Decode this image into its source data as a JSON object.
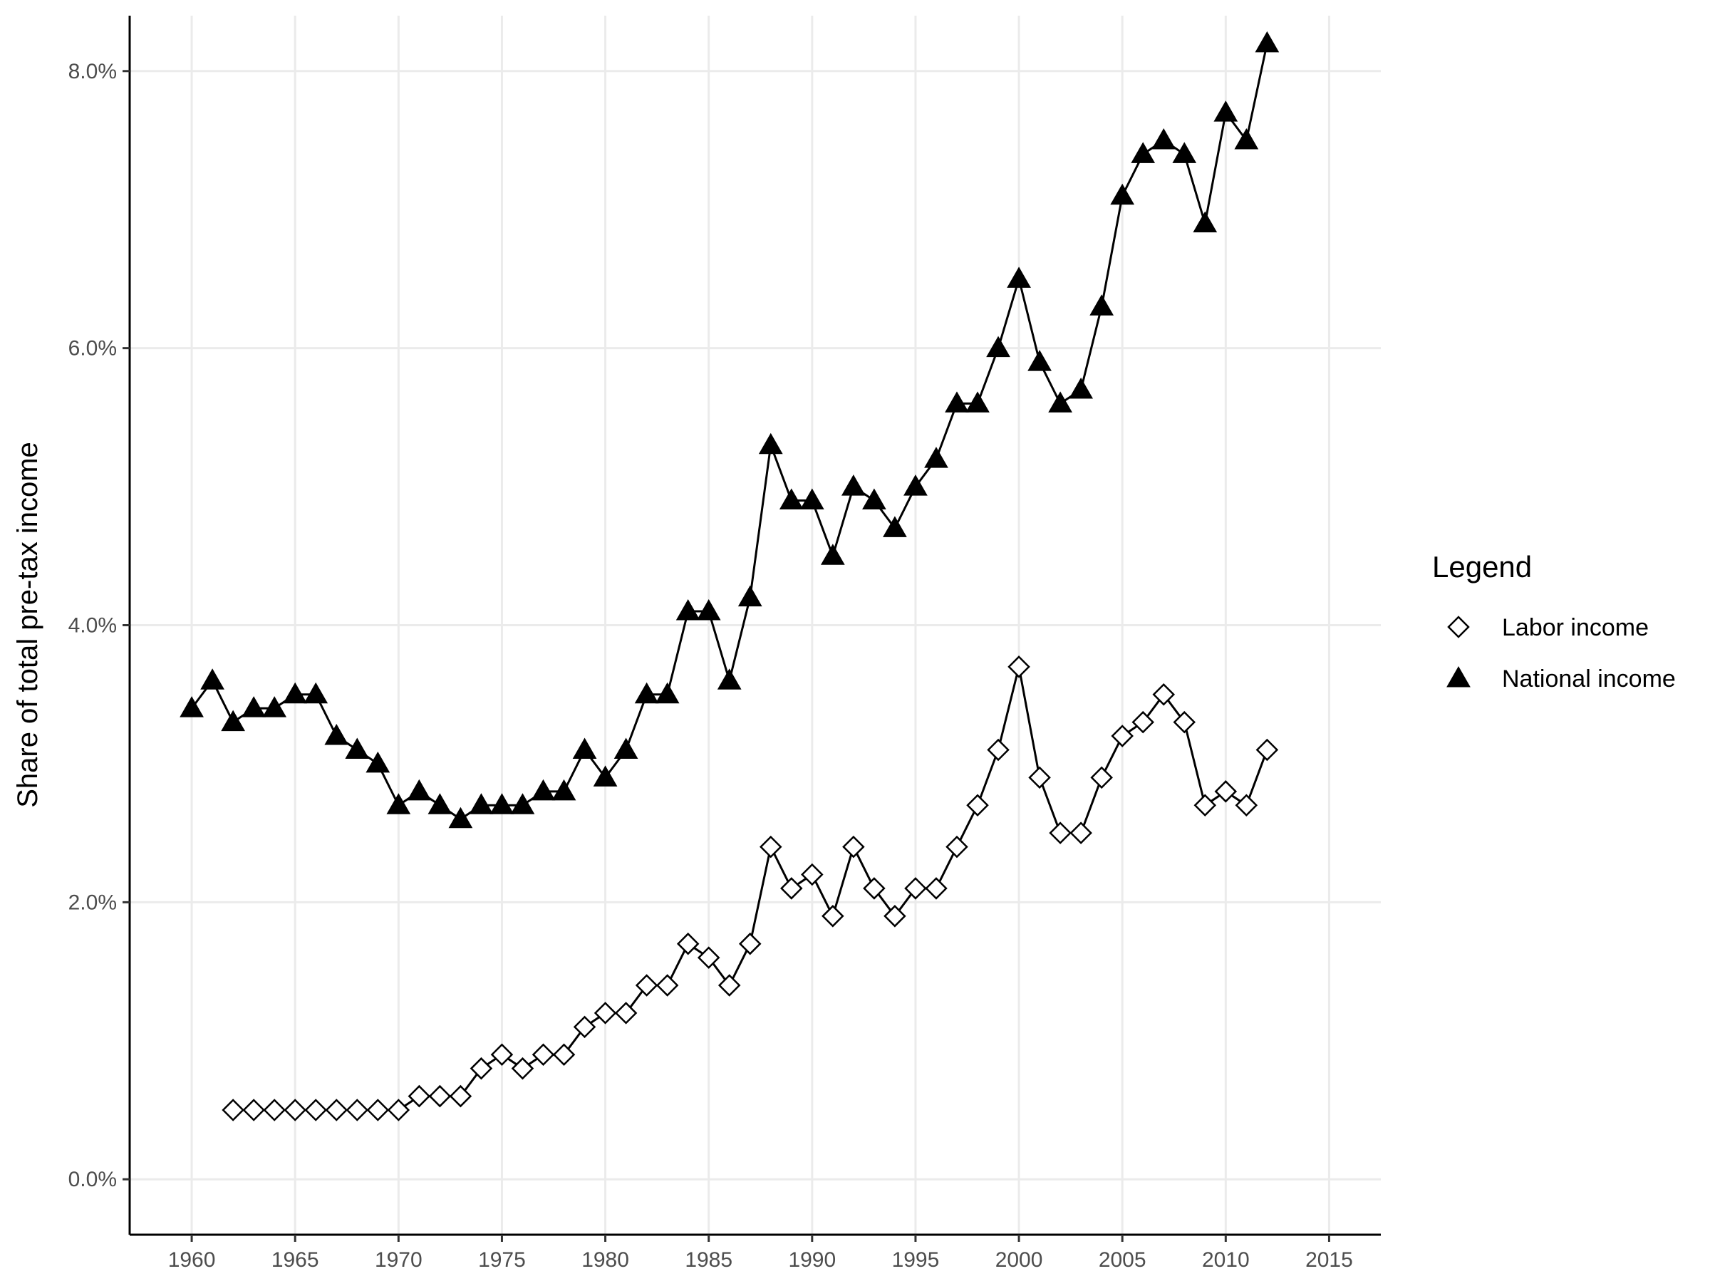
{
  "chart_data": {
    "type": "line",
    "title": "",
    "xlabel": "",
    "ylabel": "Share of total pre-tax income",
    "xlim": [
      1957,
      2017.5
    ],
    "ylim": [
      -0.4,
      8.4
    ],
    "x_ticks": [
      1960,
      1965,
      1970,
      1975,
      1980,
      1985,
      1990,
      1995,
      2000,
      2005,
      2010,
      2015
    ],
    "x_tick_labels": [
      "1960",
      "1965",
      "1970",
      "1975",
      "1980",
      "1985",
      "1990",
      "1995",
      "2000",
      "2005",
      "2010",
      "2015"
    ],
    "y_ticks": [
      0,
      2,
      4,
      6,
      8
    ],
    "y_tick_labels": [
      "0.0%",
      "2.0%",
      "4.0%",
      "6.0%",
      "8.0%"
    ],
    "grid": true,
    "legend": {
      "title": "Legend",
      "position": "right"
    },
    "series": [
      {
        "name": "Labor income",
        "marker": "open-diamond",
        "x": [
          1962,
          1963,
          1964,
          1965,
          1966,
          1967,
          1968,
          1969,
          1970,
          1971,
          1972,
          1973,
          1974,
          1975,
          1976,
          1977,
          1978,
          1979,
          1980,
          1981,
          1982,
          1983,
          1984,
          1985,
          1986,
          1987,
          1988,
          1989,
          1990,
          1991,
          1992,
          1993,
          1994,
          1995,
          1996,
          1997,
          1998,
          1999,
          2000,
          2001,
          2002,
          2003,
          2004,
          2005,
          2006,
          2007,
          2008,
          2009,
          2010,
          2011,
          2012
        ],
        "values": [
          0.5,
          0.5,
          0.5,
          0.5,
          0.5,
          0.5,
          0.5,
          0.5,
          0.5,
          0.6,
          0.6,
          0.6,
          0.8,
          0.9,
          0.8,
          0.9,
          0.9,
          1.1,
          1.2,
          1.2,
          1.4,
          1.4,
          1.7,
          1.6,
          1.4,
          1.7,
          2.4,
          2.1,
          2.2,
          1.9,
          2.4,
          2.1,
          1.9,
          2.1,
          2.1,
          2.4,
          2.7,
          3.1,
          3.7,
          2.9,
          2.5,
          2.5,
          2.9,
          3.2,
          3.3,
          3.5,
          3.3,
          2.7,
          2.8,
          2.7,
          3.1
        ]
      },
      {
        "name": "National income",
        "marker": "filled-triangle",
        "x": [
          1960,
          1961,
          1962,
          1963,
          1964,
          1965,
          1966,
          1967,
          1968,
          1969,
          1970,
          1971,
          1972,
          1973,
          1974,
          1975,
          1976,
          1977,
          1978,
          1979,
          1980,
          1981,
          1982,
          1983,
          1984,
          1985,
          1986,
          1987,
          1988,
          1989,
          1990,
          1991,
          1992,
          1993,
          1994,
          1995,
          1996,
          1997,
          1998,
          1999,
          2000,
          2001,
          2002,
          2003,
          2004,
          2005,
          2006,
          2007,
          2008,
          2009,
          2010,
          2011,
          2012
        ],
        "values": [
          3.4,
          3.6,
          3.3,
          3.4,
          3.4,
          3.5,
          3.5,
          3.2,
          3.1,
          3.0,
          2.7,
          2.8,
          2.7,
          2.6,
          2.7,
          2.7,
          2.7,
          2.8,
          2.8,
          3.1,
          2.9,
          3.1,
          3.5,
          3.5,
          4.1,
          4.1,
          3.6,
          4.2,
          5.3,
          4.9,
          4.9,
          4.5,
          5.0,
          4.9,
          4.7,
          5.0,
          5.2,
          5.6,
          5.6,
          6.0,
          6.5,
          5.9,
          5.6,
          5.7,
          6.3,
          7.1,
          7.4,
          7.5,
          7.4,
          6.9,
          7.7,
          7.5,
          8.2
        ]
      }
    ]
  }
}
